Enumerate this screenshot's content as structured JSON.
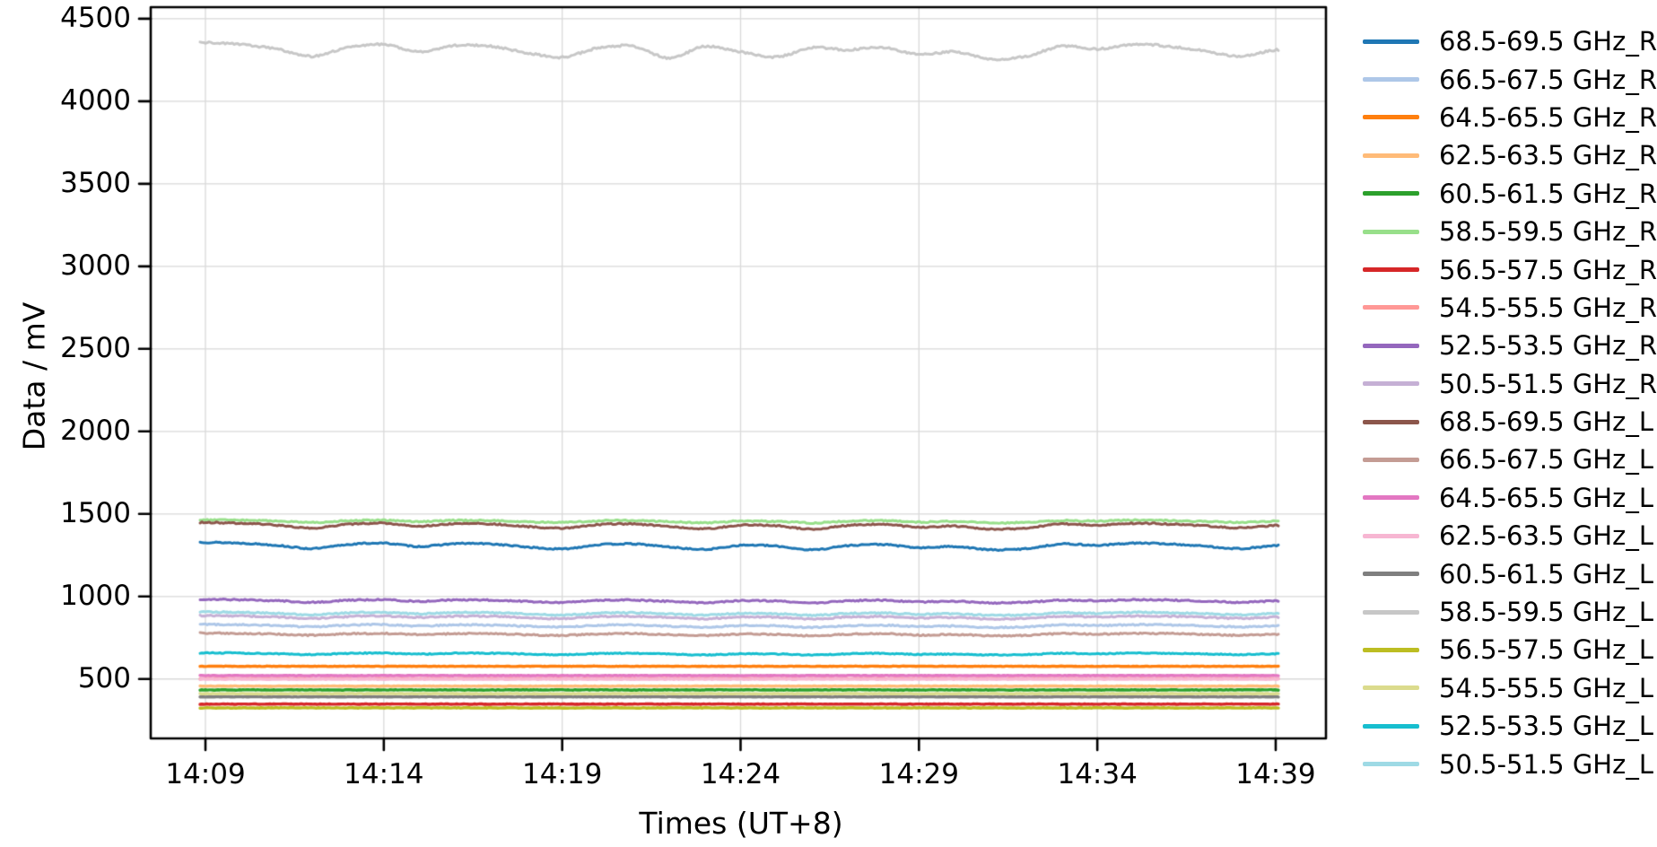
{
  "chart_data": {
    "type": "line",
    "title": "",
    "xlabel": "Times (UT+8)",
    "ylabel": "Data / mV",
    "x_tick_labels": [
      "14:09",
      "14:14",
      "14:19",
      "14:24",
      "14:29",
      "14:34",
      "14:39"
    ],
    "y_tick_labels": [
      4500,
      4000,
      3500,
      3000,
      2500,
      2000,
      1500,
      1000,
      500
    ],
    "ylim": [
      140,
      4570
    ],
    "grid": true,
    "legend_position": "right-outside",
    "grid_color": "#d9d9d9",
    "axis_color": "#000000",
    "x_unit": "minutes, one point per minute from 14:09 to 14:39",
    "series": [
      {
        "label": "68.5-69.5 GHz_R",
        "color": "#1f77b4",
        "noise": 4,
        "values": [
          1328,
          1323,
          1310,
          1290,
          1315,
          1323,
          1303,
          1320,
          1318,
          1300,
          1288,
          1313,
          1318,
          1300,
          1285,
          1310,
          1305,
          1283,
          1308,
          1315,
          1295,
          1303,
          1283,
          1290,
          1318,
          1310,
          1323,
          1318,
          1305,
          1290,
          1308
        ]
      },
      {
        "label": "66.5-67.5 GHz_R",
        "color": "#aec7e8",
        "noise": 4,
        "values": [
          831,
          829,
          824,
          816,
          826,
          829,
          821,
          828,
          827,
          820,
          815,
          825,
          827,
          820,
          814,
          824,
          822,
          813,
          823,
          826,
          818,
          821,
          813,
          816,
          827,
          824,
          829,
          827,
          822,
          816,
          823
        ]
      },
      {
        "label": "64.5-65.5 GHz_R",
        "color": "#ff7f0e",
        "noise": 1.6,
        "values": [
          577
        ]
      },
      {
        "label": "62.5-63.5 GHz_R",
        "color": "#ffbb78",
        "noise": 1.6,
        "values": [
          457
        ]
      },
      {
        "label": "60.5-61.5 GHz_R",
        "color": "#2ca02c",
        "noise": 1.6,
        "values": [
          434
        ]
      },
      {
        "label": "58.5-59.5 GHz_R",
        "color": "#98df8a",
        "noise": 4,
        "values": [
          1464,
          1462,
          1457,
          1449,
          1459,
          1462,
          1454,
          1461,
          1460,
          1453,
          1448,
          1458,
          1460,
          1453,
          1447,
          1457,
          1455,
          1446,
          1456,
          1459,
          1451,
          1454,
          1446,
          1449,
          1460,
          1457,
          1462,
          1460,
          1455,
          1449,
          1456
        ]
      },
      {
        "label": "56.5-57.5 GHz_R",
        "color": "#d62728",
        "noise": 1.4,
        "values": [
          348
        ]
      },
      {
        "label": "54.5-55.5 GHz_R",
        "color": "#ff9896",
        "noise": 1.6,
        "values": [
          503
        ]
      },
      {
        "label": "52.5-53.5 GHz_R",
        "color": "#9467bd",
        "noise": 4,
        "values": [
          983,
          980,
          974,
          965,
          977,
          980,
          971,
          979,
          978,
          970,
          964,
          976,
          978,
          970,
          962,
          974,
          972,
          961,
          973,
          977,
          967,
          971,
          961,
          965,
          978,
          974,
          980,
          978,
          972,
          965,
          973
        ]
      },
      {
        "label": "50.5-51.5 GHz_R",
        "color": "#c5b0d5",
        "noise": 4,
        "values": [
          884,
          882,
          876,
          867,
          878,
          882,
          873,
          881,
          880,
          872,
          866,
          877,
          880,
          872,
          865,
          876,
          874,
          864,
          875,
          878,
          870,
          873,
          864,
          867,
          880,
          876,
          882,
          880,
          874,
          867,
          875
        ]
      },
      {
        "label": "68.5-69.5 GHz_L",
        "color": "#8c564b",
        "noise": 4,
        "values": [
          1448,
          1443,
          1432,
          1415,
          1437,
          1443,
          1426,
          1441,
          1439,
          1424,
          1413,
          1435,
          1439,
          1424,
          1410,
          1432,
          1428,
          1408,
          1430,
          1437,
          1419,
          1426,
          1408,
          1415,
          1439,
          1432,
          1443,
          1439,
          1428,
          1415,
          1430
        ]
      },
      {
        "label": "66.5-67.5 GHz_L",
        "color": "#c49c94",
        "noise": 4,
        "values": [
          778,
          776,
          772,
          765,
          774,
          776,
          769,
          775,
          775,
          768,
          764,
          773,
          775,
          768,
          763,
          772,
          770,
          762,
          771,
          774,
          766,
          769,
          762,
          765,
          775,
          772,
          776,
          775,
          770,
          765,
          771
        ]
      },
      {
        "label": "64.5-65.5 GHz_L",
        "color": "#e377c2",
        "noise": 1.6,
        "values": [
          521
        ]
      },
      {
        "label": "62.5-63.5 GHz_L",
        "color": "#f7b6d2",
        "noise": 1.6,
        "values": [
          499
        ]
      },
      {
        "label": "60.5-61.5 GHz_L",
        "color": "#7f7f7f",
        "noise": 1.4,
        "values": [
          392
        ]
      },
      {
        "label": "58.5-59.5 GHz_L",
        "color": "#c7c7c7",
        "noise": 6,
        "values": [
          4355,
          4344,
          4316,
          4272,
          4327,
          4344,
          4300,
          4338,
          4333,
          4294,
          4267,
          4322,
          4333,
          4262,
          4332,
          4300,
          4268,
          4324,
          4311,
          4327,
          4283,
          4300,
          4256,
          4272,
          4333,
          4316,
          4344,
          4333,
          4305,
          4272,
          4311
        ]
      },
      {
        "label": "56.5-57.5 GHz_L",
        "color": "#bcbd22",
        "noise": 1.6,
        "values": [
          325
        ]
      },
      {
        "label": "54.5-55.5 GHz_L",
        "color": "#dbdb8d",
        "noise": 1.6,
        "values": [
          411
        ]
      },
      {
        "label": "52.5-53.5 GHz_L",
        "color": "#17becf",
        "noise": 3,
        "values": [
          658,
          657,
          653,
          648,
          655,
          657,
          651,
          656,
          656,
          651,
          647,
          654,
          656,
          651,
          646,
          653,
          652,
          646,
          653,
          655,
          649,
          651,
          646,
          648,
          656,
          653,
          657,
          656,
          652,
          648,
          653
        ]
      },
      {
        "label": "50.5-51.5 GHz_L",
        "color": "#9edae5",
        "noise": 4,
        "values": [
          906,
          904,
          898,
          889,
          900,
          904,
          895,
          903,
          902,
          894,
          888,
          899,
          902,
          894,
          887,
          898,
          896,
          886,
          897,
          900,
          892,
          895,
          886,
          889,
          902,
          898,
          904,
          902,
          896,
          889,
          897
        ]
      }
    ]
  }
}
